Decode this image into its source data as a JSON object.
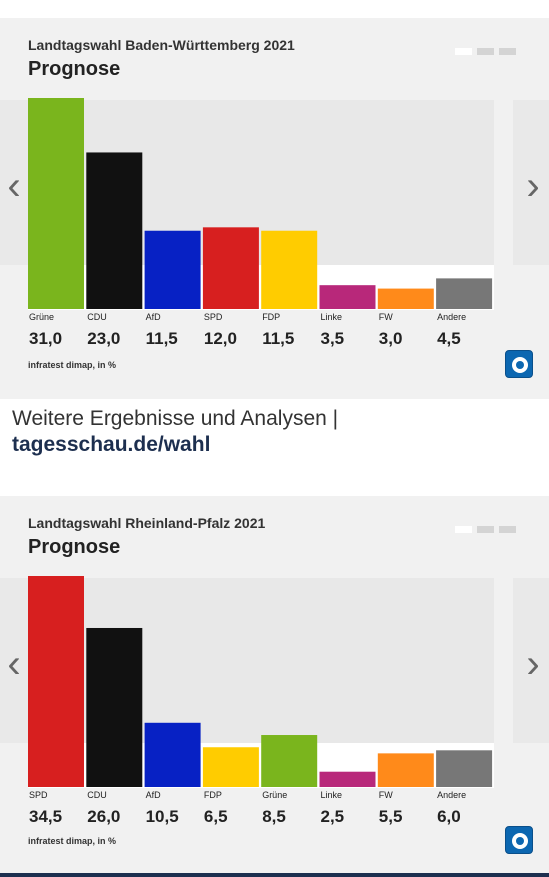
{
  "chart_data": [
    {
      "type": "bar",
      "title": "Landtagswahl Baden-Württemberg 2021",
      "subtitle": "Prognose",
      "categories": [
        "Grüne",
        "CDU",
        "AfD",
        "SPD",
        "FDP",
        "Linke",
        "FW",
        "Andere"
      ],
      "values": [
        31.0,
        23.0,
        11.5,
        12.0,
        11.5,
        3.5,
        3.0,
        4.5
      ],
      "value_labels": [
        "31,0",
        "23,0",
        "11,5",
        "12,0",
        "11,5",
        "3,5",
        "3,0",
        "4,5"
      ],
      "colors": [
        "#7ab51d",
        "#111111",
        "#0721c4",
        "#d71f1f",
        "#ffcc00",
        "#b8287a",
        "#ff8a1a",
        "#777777"
      ],
      "ylim": [
        0,
        31
      ],
      "source": "infratest dimap, in %"
    },
    {
      "type": "bar",
      "title": "Landtagswahl Rheinland-Pfalz 2021",
      "subtitle": "Prognose",
      "categories": [
        "SPD",
        "CDU",
        "AfD",
        "FDP",
        "Grüne",
        "Linke",
        "FW",
        "Andere"
      ],
      "values": [
        34.5,
        26.0,
        10.5,
        6.5,
        8.5,
        2.5,
        5.5,
        6.0
      ],
      "value_labels": [
        "34,5",
        "26,0",
        "10,5",
        "6,5",
        "8,5",
        "2,5",
        "5,5",
        "6,0"
      ],
      "colors": [
        "#d71f1f",
        "#111111",
        "#0721c4",
        "#ffcc00",
        "#7ab51d",
        "#b8287a",
        "#ff8a1a",
        "#777777"
      ],
      "ylim": [
        0,
        34.5
      ],
      "source": "infratest dimap, in %"
    }
  ],
  "link": {
    "line1": "Weitere Ergebnisse und Analysen |",
    "line2": "tagesschau.de/wahl"
  },
  "nav": {
    "prev": "‹",
    "next": "›"
  },
  "icons": {
    "logo": "ard-logo-icon",
    "prev": "chevron-left-icon",
    "next": "chevron-right-icon"
  }
}
